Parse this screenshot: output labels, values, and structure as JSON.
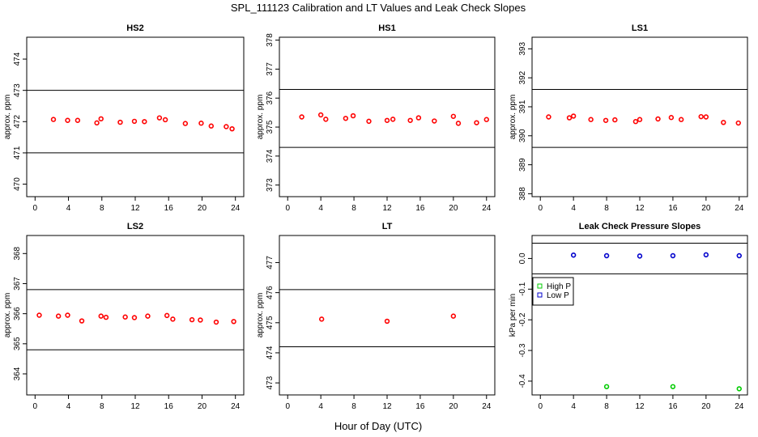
{
  "title": "SPL_111123  Calibration and LT Values and Leak Check Slopes",
  "xlabel": "Hour of Day (UTC)",
  "colors": {
    "calibration": "#ff0000",
    "high_p": "#00cc00",
    "low_p": "#0000cc"
  },
  "chart_data": [
    {
      "type": "scatter",
      "title": "HS2",
      "ylabel": "approx. ppm",
      "xlim": [
        -1,
        25
      ],
      "ylim": [
        469.6,
        474.7
      ],
      "xticks": [
        0,
        4,
        8,
        12,
        16,
        20,
        24
      ],
      "yticks": [
        470,
        471,
        472,
        473,
        474
      ],
      "hlines": [
        473.0,
        471.0
      ],
      "series": [
        {
          "color": "#ff0000",
          "x": [
            2.2,
            3.9,
            5.1,
            7.4,
            7.9,
            10.2,
            11.9,
            13.1,
            14.9,
            15.6,
            18.0,
            19.9,
            21.1,
            22.9,
            23.6
          ],
          "y": [
            472.07,
            472.04,
            472.04,
            471.96,
            472.09,
            471.98,
            472.01,
            472.0,
            472.12,
            472.06,
            471.94,
            471.95,
            471.86,
            471.84,
            471.77
          ]
        }
      ]
    },
    {
      "type": "scatter",
      "title": "HS1",
      "ylabel": "approx. ppm",
      "xlim": [
        -1,
        25
      ],
      "ylim": [
        372.6,
        378.1
      ],
      "xticks": [
        0,
        4,
        8,
        12,
        16,
        20,
        24
      ],
      "yticks": [
        373,
        374,
        375,
        376,
        377,
        378
      ],
      "hlines": [
        376.3,
        374.3
      ],
      "series": [
        {
          "color": "#ff0000",
          "x": [
            1.7,
            4.0,
            4.6,
            7.0,
            7.9,
            9.8,
            12.0,
            12.7,
            14.8,
            15.8,
            17.7,
            20.0,
            20.6,
            22.8,
            24.0
          ],
          "y": [
            375.35,
            375.42,
            375.27,
            375.3,
            375.39,
            375.2,
            375.23,
            375.27,
            375.23,
            375.32,
            375.21,
            375.37,
            375.13,
            375.15,
            375.26
          ]
        }
      ]
    },
    {
      "type": "scatter",
      "title": "LS1",
      "ylabel": "approx. ppm",
      "xlim": [
        -1,
        25
      ],
      "ylim": [
        387.9,
        393.4
      ],
      "xticks": [
        0,
        4,
        8,
        12,
        16,
        20,
        24
      ],
      "yticks": [
        388,
        389,
        390,
        391,
        392,
        393
      ],
      "hlines": [
        391.6,
        389.6
      ],
      "series": [
        {
          "color": "#ff0000",
          "x": [
            1.0,
            3.5,
            4.0,
            6.1,
            7.9,
            9.0,
            11.5,
            12.0,
            14.2,
            15.8,
            17.0,
            19.4,
            20.0,
            22.1,
            23.9
          ],
          "y": [
            390.65,
            390.62,
            390.68,
            390.56,
            390.53,
            390.55,
            390.49,
            390.56,
            390.58,
            390.63,
            390.56,
            390.66,
            390.65,
            390.46,
            390.44
          ]
        }
      ]
    },
    {
      "type": "scatter",
      "title": "LS2",
      "ylabel": "approx. ppm",
      "xlim": [
        -1,
        25
      ],
      "ylim": [
        363.3,
        368.6
      ],
      "xticks": [
        0,
        4,
        8,
        12,
        16,
        20,
        24
      ],
      "yticks": [
        364,
        365,
        366,
        367,
        368
      ],
      "hlines": [
        366.8,
        364.8
      ],
      "series": [
        {
          "color": "#ff0000",
          "x": [
            0.5,
            2.8,
            3.9,
            5.6,
            7.9,
            8.5,
            10.8,
            11.9,
            13.5,
            15.8,
            16.5,
            18.8,
            19.8,
            21.7,
            23.8
          ],
          "y": [
            365.95,
            365.92,
            365.95,
            365.76,
            365.92,
            365.88,
            365.89,
            365.87,
            365.92,
            365.94,
            365.82,
            365.8,
            365.79,
            365.72,
            365.74
          ]
        }
      ]
    },
    {
      "type": "scatter",
      "title": "LT",
      "ylabel": "approx. ppm",
      "xlim": [
        -1,
        25
      ],
      "ylim": [
        472.6,
        477.9
      ],
      "xticks": [
        0,
        4,
        8,
        12,
        16,
        20,
        24
      ],
      "yticks": [
        473,
        474,
        475,
        476,
        477
      ],
      "hlines": [
        476.1,
        474.2
      ],
      "series": [
        {
          "color": "#ff0000",
          "x": [
            4.1,
            12.0,
            20.0
          ],
          "y": [
            475.12,
            475.05,
            475.22
          ]
        }
      ]
    },
    {
      "type": "scatter",
      "title": "Leak Check Pressure Slopes",
      "ylabel": "kPa per min",
      "xlim": [
        -1,
        25
      ],
      "ylim": [
        -0.445,
        0.075
      ],
      "xticks": [
        0,
        4,
        8,
        12,
        16,
        20,
        24
      ],
      "yticks": [
        0.0,
        -0.1,
        -0.2,
        -0.3,
        -0.4
      ],
      "ytick_labels": [
        "0.0",
        "-0.1",
        "-0.2",
        "-0.3",
        "-0.4"
      ],
      "hlines": [
        0.05,
        -0.05
      ],
      "legend": {
        "placement": "left",
        "entries": [
          "High P",
          "Low P"
        ]
      },
      "series": [
        {
          "name": "High P",
          "color": "#00cc00",
          "marker": "circle",
          "x": [
            8.0,
            16.0,
            24.0
          ],
          "y": [
            -0.418,
            -0.418,
            -0.425
          ]
        },
        {
          "name": "Low P",
          "color": "#0000cc",
          "marker": "circle",
          "x": [
            4.0,
            8.0,
            12.0,
            16.0,
            20.0,
            24.0
          ],
          "y": [
            0.011,
            0.009,
            0.008,
            0.009,
            0.012,
            0.009
          ]
        }
      ]
    }
  ]
}
